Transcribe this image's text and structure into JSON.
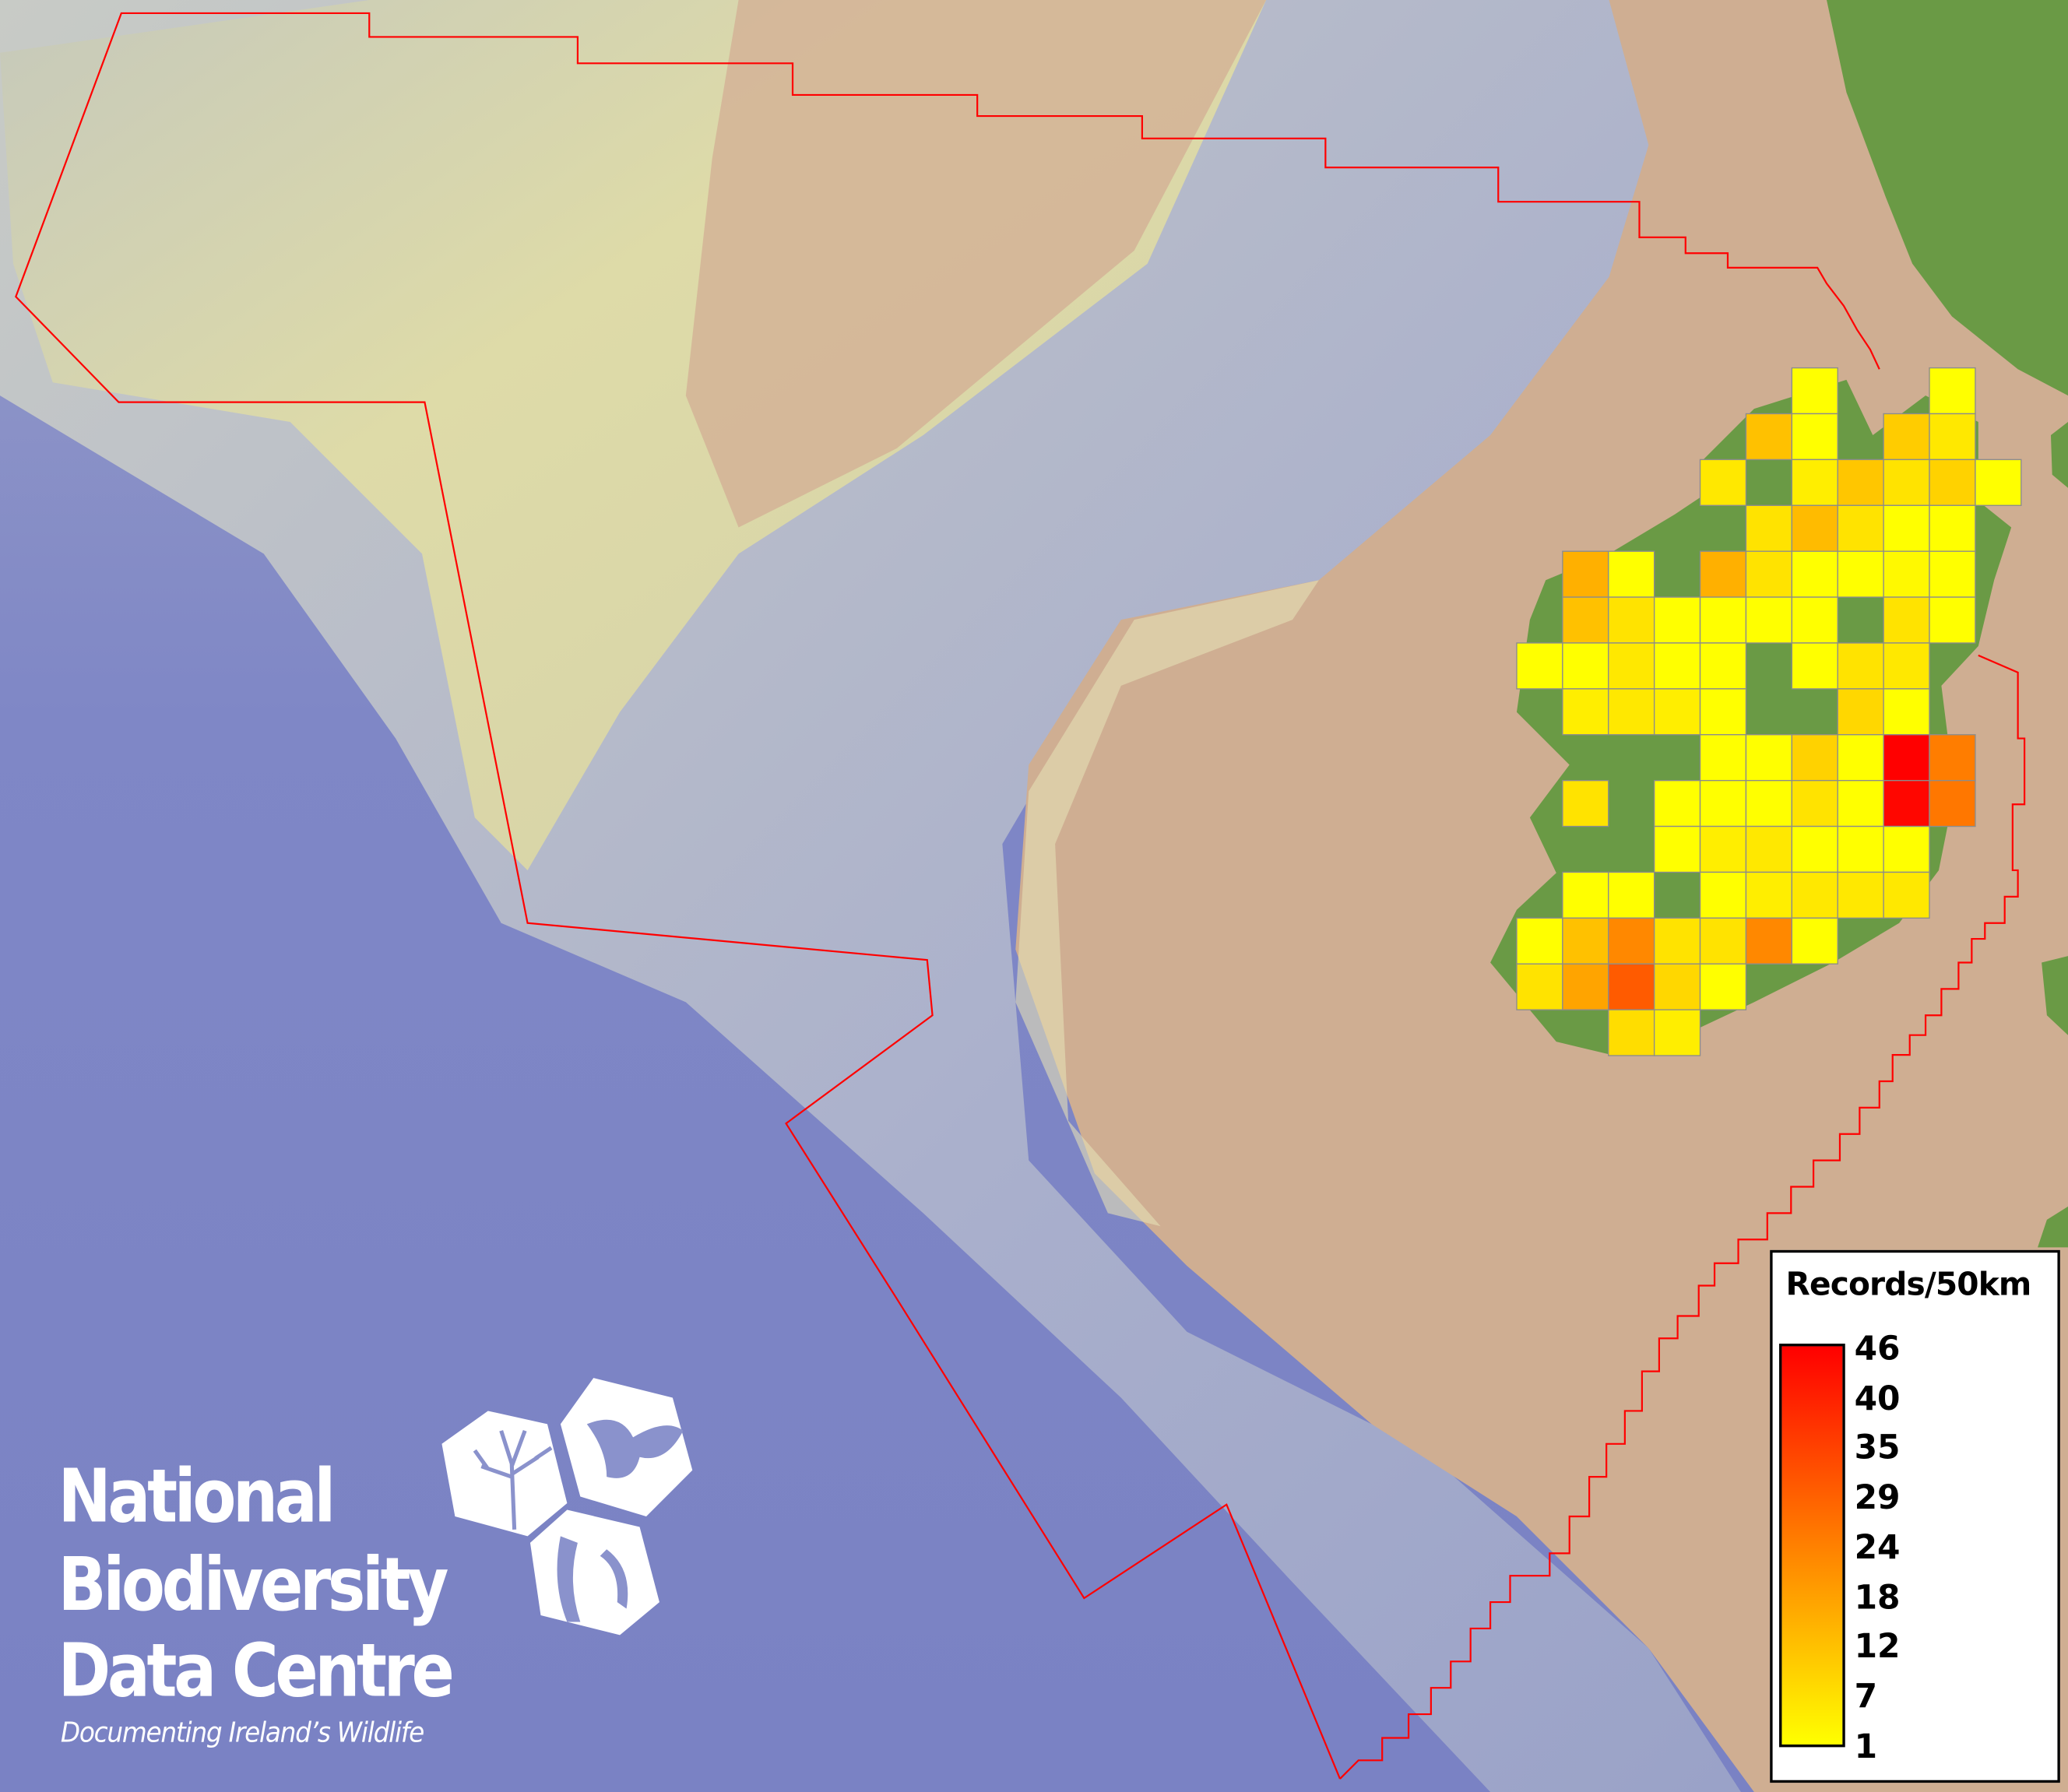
{
  "legend": {
    "title": "Records/50km",
    "ticks": [
      "46",
      "40",
      "35",
      "29",
      "24",
      "18",
      "12",
      "7",
      "1"
    ],
    "min": 1,
    "max": 46,
    "colors": {
      "low": "#ffff00",
      "mid": "#ff8000",
      "high": "#ff0000"
    }
  },
  "grid": {
    "cell_size_km": 50,
    "rows": [
      [
        null,
        null,
        null,
        null,
        null,
        null,
        1,
        null,
        null,
        1,
        null
      ],
      [
        null,
        null,
        null,
        null,
        null,
        12,
        1,
        null,
        10,
        5,
        null
      ],
      [
        null,
        null,
        null,
        null,
        5,
        null,
        4,
        11,
        6,
        9,
        1
      ],
      [
        null,
        null,
        null,
        null,
        null,
        6,
        13,
        6,
        1,
        1,
        null
      ],
      [
        null,
        15,
        1,
        null,
        15,
        6,
        1,
        1,
        2,
        1,
        null
      ],
      [
        null,
        12,
        6,
        1,
        1,
        1,
        1,
        null,
        6,
        1,
        null
      ],
      [
        1,
        1,
        5,
        1,
        1,
        null,
        1,
        6,
        5,
        null,
        null
      ],
      [
        null,
        4,
        5,
        4,
        1,
        null,
        null,
        8,
        1,
        null,
        null
      ],
      [
        null,
        null,
        null,
        null,
        1,
        1,
        9,
        1,
        46,
        24,
        null
      ],
      [
        null,
        6,
        null,
        1,
        1,
        1,
        6,
        1,
        45,
        25,
        null
      ],
      [
        null,
        null,
        null,
        1,
        4,
        5,
        1,
        1,
        1,
        null,
        null
      ],
      [
        null,
        1,
        1,
        null,
        1,
        4,
        5,
        5,
        5,
        null,
        null
      ],
      [
        1,
        12,
        22,
        6,
        6,
        22,
        1,
        null,
        null,
        null,
        null
      ],
      [
        6,
        17,
        30,
        8,
        1,
        null,
        null,
        null,
        null,
        null,
        null
      ],
      [
        null,
        null,
        7,
        4,
        null,
        null,
        null,
        null,
        null,
        null,
        null
      ]
    ]
  },
  "map_colors": {
    "deep_sea": "#7c84c6",
    "slope": "#aeb3cc",
    "shelf": "#cfae92",
    "bank": "#dcd8a6",
    "land": "#6a9a45",
    "boundary": "#ff0000"
  },
  "logo": {
    "line1": "National",
    "line2": "Biodiversity",
    "line3": "Data Centre",
    "tagline": "Documenting Ireland’s Wildlife"
  }
}
